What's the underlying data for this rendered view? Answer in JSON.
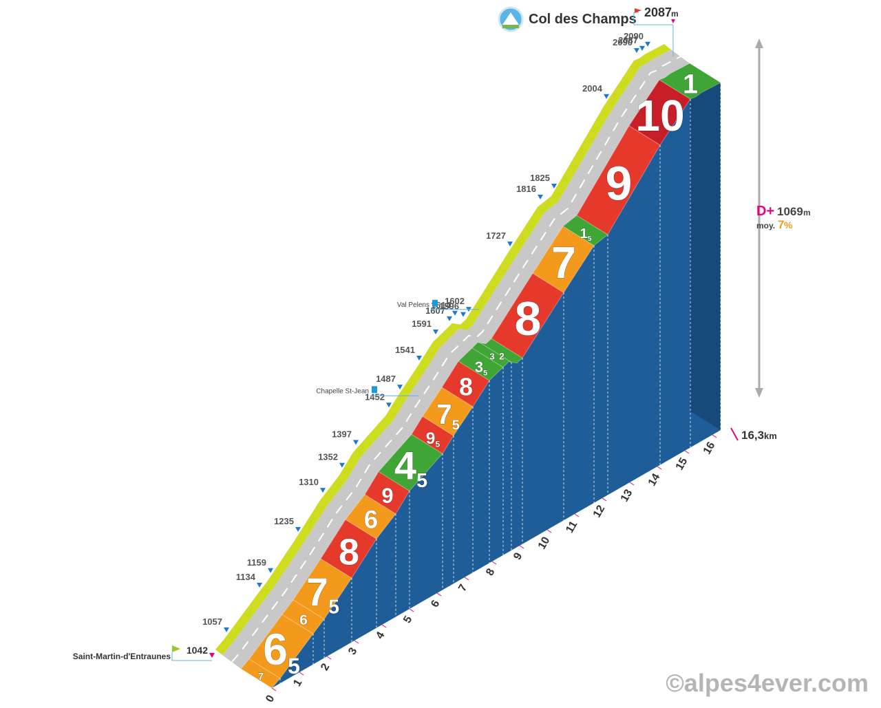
{
  "chart_data": {
    "type": "elevation-profile",
    "title": "Col des Champs",
    "summit_altitude": 2087,
    "altitude_unit": "m",
    "start": {
      "name": "Saint-Martin-d'Entraunes",
      "altitude": 1042
    },
    "total_distance": {
      "value": 16.3,
      "label": "16,3"
    },
    "distance_unit": "km",
    "climb_label": "D+",
    "climb": 1069,
    "average_label": "moy.",
    "average_gradient": 7,
    "gradient_unit": "%",
    "watermark": "©alpes4ever.com",
    "xticks": [
      0,
      1,
      2,
      3,
      4,
      5,
      6,
      7,
      8,
      9,
      10,
      11,
      12,
      13,
      14,
      15,
      16
    ],
    "markers": [
      {
        "km": 0.3,
        "altitude": 1057
      },
      {
        "km": 1.5,
        "altitude": 1134
      },
      {
        "km": 1.9,
        "altitude": 1159
      },
      {
        "km": 2.9,
        "altitude": 1235
      },
      {
        "km": 3.8,
        "altitude": 1310
      },
      {
        "km": 4.5,
        "altitude": 1352
      },
      {
        "km": 5.0,
        "altitude": 1397
      },
      {
        "km": 6.2,
        "altitude": 1452
      },
      {
        "km": 6.6,
        "altitude": 1487
      },
      {
        "km": 7.3,
        "altitude": 1541
      },
      {
        "km": 7.9,
        "altitude": 1591
      },
      {
        "km": 8.4,
        "altitude": 1607
      },
      {
        "km": 8.6,
        "altitude": 1614
      },
      {
        "km": 8.9,
        "altitude": 1596
      },
      {
        "km": 9.1,
        "altitude": 1602
      },
      {
        "km": 10.6,
        "altitude": 1727
      },
      {
        "km": 11.7,
        "altitude": 1816
      },
      {
        "km": 12.2,
        "altitude": 1825
      },
      {
        "km": 14.1,
        "altitude": 2004
      },
      {
        "km": 15.2,
        "altitude": 2090
      },
      {
        "km": 15.4,
        "altitude": 2087
      },
      {
        "km": 15.6,
        "altitude": 2090
      }
    ],
    "pois": [
      {
        "name": "Val Pelens",
        "km": 8.4
      },
      {
        "name": "Chapelle St-Jean",
        "km": 6.2
      }
    ],
    "segments": [
      {
        "from": 0,
        "to": 0.3,
        "gradient": 7,
        "color": "#f39a1c"
      },
      {
        "from": 0.3,
        "to": 1.5,
        "gradient": 6.5,
        "color": "#f39a1c"
      },
      {
        "from": 1.5,
        "to": 1.9,
        "gradient": 6,
        "color": "#f39a1c"
      },
      {
        "from": 1.9,
        "to": 2.9,
        "gradient": 7.5,
        "color": "#f39a1c"
      },
      {
        "from": 2.9,
        "to": 3.8,
        "gradient": 8,
        "color": "#e5392c"
      },
      {
        "from": 3.8,
        "to": 4.5,
        "gradient": 6,
        "color": "#f39a1c"
      },
      {
        "from": 4.5,
        "to": 5.0,
        "gradient": 9,
        "color": "#e5392c"
      },
      {
        "from": 5.0,
        "to": 6.2,
        "gradient": 4.5,
        "color": "#3fa535"
      },
      {
        "from": 6.2,
        "to": 6.6,
        "gradient": 9.5,
        "color": "#e5392c"
      },
      {
        "from": 6.6,
        "to": 7.3,
        "gradient": 7.5,
        "color": "#f39a1c"
      },
      {
        "from": 7.3,
        "to": 7.9,
        "gradient": 8,
        "color": "#e5392c"
      },
      {
        "from": 7.9,
        "to": 8.4,
        "gradient": 3.5,
        "color": "#3fa535"
      },
      {
        "from": 8.4,
        "to": 8.7,
        "gradient": 3,
        "color": "#3fa535"
      },
      {
        "from": 8.7,
        "to": 9.1,
        "gradient": 2,
        "color": "#3fa535"
      },
      {
        "from": 9.1,
        "to": 10.6,
        "gradient": 8,
        "color": "#e5392c"
      },
      {
        "from": 10.6,
        "to": 11.7,
        "gradient": 7,
        "color": "#f39a1c"
      },
      {
        "from": 11.7,
        "to": 12.2,
        "gradient": 1.5,
        "color": "#3fa535"
      },
      {
        "from": 12.2,
        "to": 14.1,
        "gradient": 9,
        "color": "#e5392c"
      },
      {
        "from": 14.1,
        "to": 15.2,
        "gradient": 10,
        "color": "#c81e28"
      },
      {
        "from": 15.2,
        "to": 16.3,
        "gradient": 1,
        "color": "#3fa535"
      }
    ]
  }
}
